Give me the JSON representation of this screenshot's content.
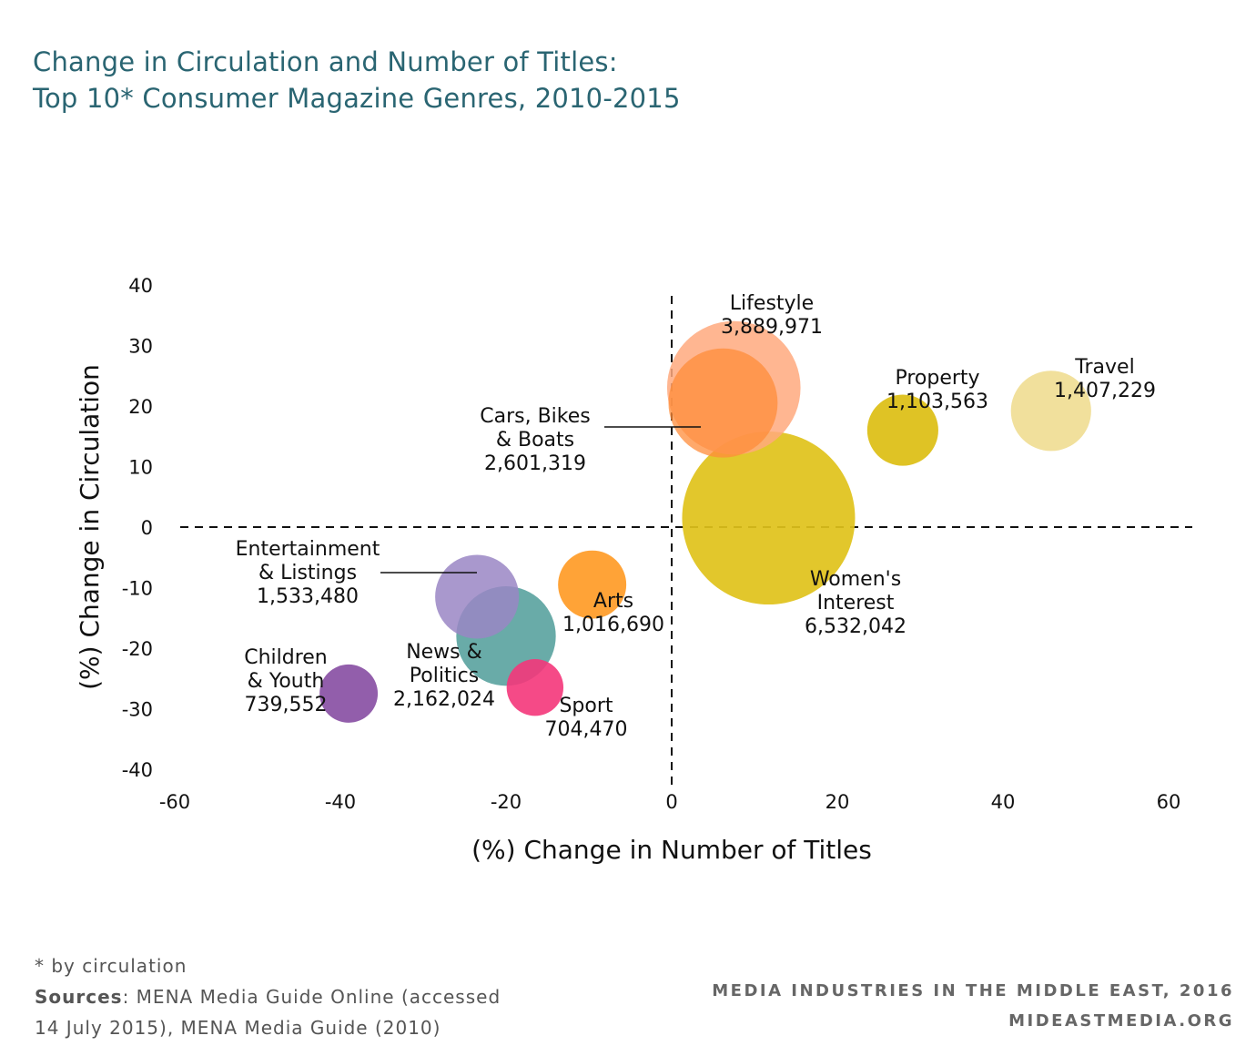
{
  "title": {
    "line1": "Change in Circulation and Number of Titles:",
    "line2": "Top 10* Consumer Magazine Genres, 2010-2015"
  },
  "chart_data": {
    "type": "scatter",
    "subtype": "bubble",
    "xlabel": "(%) Change in Number of Titles",
    "ylabel": "(%) Change in Circulation",
    "xlim": [
      -60,
      60
    ],
    "ylim": [
      -40,
      40
    ],
    "x_ticks": [
      -60,
      -40,
      -20,
      0,
      20,
      40,
      60
    ],
    "y_ticks": [
      40,
      30,
      20,
      10,
      0,
      -10,
      -20,
      -30,
      -40
    ],
    "grid": false,
    "reference_lines": "dashed lines at x=0 and y=0",
    "bubble_size": "circulation",
    "points": [
      {
        "name": "Women's Interest",
        "label_lines": [
          "Women's",
          "Interest"
        ],
        "value_label": "6,532,042",
        "x": 11.7,
        "y": 1.5,
        "circulation": 6532042,
        "color": "#dfc21a",
        "opacity": 0.92
      },
      {
        "name": "Lifestyle",
        "label_lines": [
          "Lifestyle"
        ],
        "value_label": "3,889,971",
        "x": 7.5,
        "y": 23,
        "circulation": 3889971,
        "color": "#ffa97e",
        "opacity": 0.85
      },
      {
        "name": "Cars, Bikes & Boats",
        "label_lines": [
          "Cars, Bikes",
          "& Boats"
        ],
        "value_label": "2,601,319",
        "x": 6.2,
        "y": 20.5,
        "circulation": 2601319,
        "color": "#ff8c3a",
        "opacity": 0.75
      },
      {
        "name": "News & Politics",
        "label_lines": [
          "News &",
          "Politics"
        ],
        "value_label": "2,162,024",
        "x": -20,
        "y": -18,
        "circulation": 2162024,
        "color": "#2f8a87",
        "opacity": 0.72
      },
      {
        "name": "Entertainment & Listings",
        "label_lines": [
          "Entertainment",
          "& Listings"
        ],
        "value_label": "1,533,480",
        "x": -23.5,
        "y": -11.5,
        "circulation": 1533480,
        "color": "#9a86c4",
        "opacity": 0.85
      },
      {
        "name": "Travel",
        "label_lines": [
          "Travel"
        ],
        "value_label": "1,407,229",
        "x": 45.8,
        "y": 19.2,
        "circulation": 1407229,
        "color": "#f1e09c",
        "opacity": 1
      },
      {
        "name": "Property",
        "label_lines": [
          "Property"
        ],
        "value_label": "1,103,563",
        "x": 27.9,
        "y": 16,
        "circulation": 1103563,
        "color": "#dfc325",
        "opacity": 1
      },
      {
        "name": "Arts",
        "label_lines": [
          "Arts"
        ],
        "value_label": "1,016,690",
        "x": -9.6,
        "y": -9.5,
        "circulation": 1016690,
        "color": "#ff9e2c",
        "opacity": 0.95
      },
      {
        "name": "Children & Youth",
        "label_lines": [
          "Children",
          "& Youth"
        ],
        "value_label": "739,552",
        "x": -39,
        "y": -27.5,
        "circulation": 739552,
        "color": "#8c55a6",
        "opacity": 0.95
      },
      {
        "name": "Sport",
        "label_lines": [
          "Sport"
        ],
        "value_label": "704,470",
        "x": -16.5,
        "y": -26.5,
        "circulation": 704470,
        "color": "#f4367a",
        "opacity": 0.9
      }
    ]
  },
  "footnote": {
    "asterisk": "* by circulation",
    "sources_label": "Sources",
    "sources_text": ": MENA Media Guide Online (accessed",
    "sources_line2": "14 July 2015), MENA Media Guide (2010)"
  },
  "branding": {
    "line1": "MEDIA INDUSTRIES IN THE MIDDLE EAST, 2016",
    "line2": "MIDEASTMEDIA.ORG"
  }
}
